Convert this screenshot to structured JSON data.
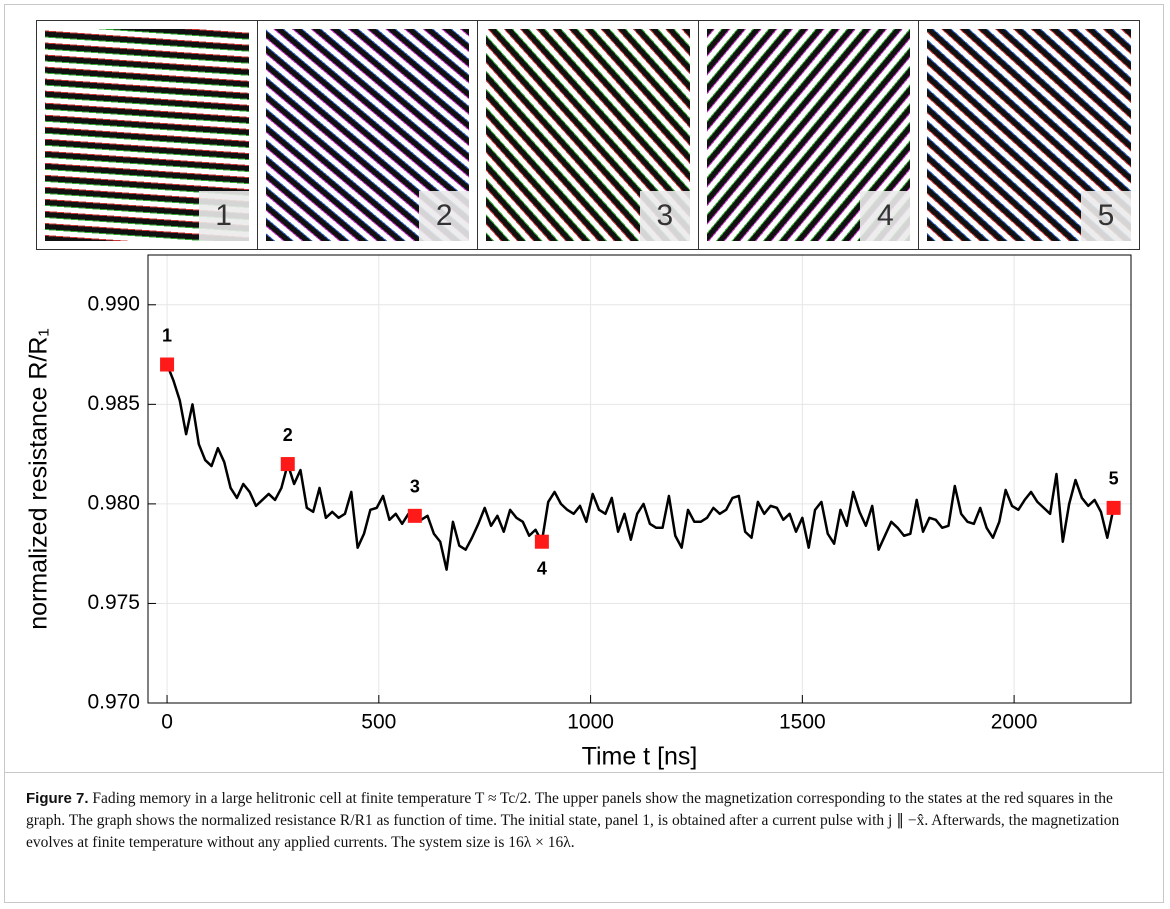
{
  "panels": [
    "1",
    "2",
    "3",
    "4",
    "5"
  ],
  "chart_data": {
    "type": "line",
    "xlabel": "Time t [ns]",
    "ylabel": "normalized resistance R/R₁",
    "xlim": [
      -45,
      2276
    ],
    "ylim": [
      0.97,
      0.9925
    ],
    "xticks": [
      0,
      500,
      1000,
      1500,
      2000
    ],
    "yticks": [
      {
        "value": 0.97,
        "label": "0.970"
      },
      {
        "value": 0.975,
        "label": "0.975"
      },
      {
        "value": 0.98,
        "label": "0.980"
      },
      {
        "value": 0.985,
        "label": "0.985"
      },
      {
        "value": 0.99,
        "label": "0.990"
      }
    ],
    "grid": true,
    "series": [
      {
        "color": "#000000",
        "x": [
          0,
          15,
          30,
          45,
          60,
          75,
          90,
          105,
          120,
          135,
          150,
          165,
          180,
          195,
          210,
          225,
          240,
          255,
          270,
          285,
          300,
          315,
          330,
          345,
          360,
          375,
          390,
          405,
          420,
          435,
          450,
          465,
          480,
          495,
          510,
          525,
          540,
          555,
          570,
          585,
          600,
          615,
          630,
          645,
          660,
          675,
          690,
          705,
          720,
          735,
          750,
          765,
          780,
          795,
          810,
          825,
          840,
          855,
          870,
          885,
          900,
          915,
          930,
          945,
          960,
          975,
          990,
          1005,
          1020,
          1035,
          1050,
          1065,
          1080,
          1095,
          1110,
          1125,
          1140,
          1155,
          1170,
          1185,
          1200,
          1215,
          1230,
          1245,
          1260,
          1275,
          1290,
          1305,
          1320,
          1335,
          1350,
          1365,
          1380,
          1395,
          1410,
          1425,
          1440,
          1455,
          1470,
          1485,
          1500,
          1515,
          1530,
          1545,
          1560,
          1575,
          1590,
          1605,
          1620,
          1635,
          1650,
          1665,
          1680,
          1695,
          1710,
          1725,
          1740,
          1755,
          1770,
          1785,
          1800,
          1815,
          1830,
          1845,
          1860,
          1875,
          1890,
          1905,
          1920,
          1935,
          1950,
          1965,
          1980,
          1995,
          2010,
          2025,
          2040,
          2055,
          2070,
          2085,
          2100,
          2115,
          2130,
          2145,
          2160,
          2175,
          2190,
          2205,
          2220,
          2235
        ],
        "values": [
          0.987,
          0.9862,
          0.9852,
          0.9835,
          0.985,
          0.983,
          0.9822,
          0.9819,
          0.9828,
          0.9821,
          0.9808,
          0.9803,
          0.981,
          0.9806,
          0.9799,
          0.9802,
          0.9805,
          0.9802,
          0.9808,
          0.982,
          0.981,
          0.9817,
          0.9798,
          0.9796,
          0.9808,
          0.9793,
          0.9796,
          0.9793,
          0.9795,
          0.9806,
          0.9778,
          0.9785,
          0.9797,
          0.9798,
          0.9804,
          0.9792,
          0.9795,
          0.979,
          0.9795,
          0.9794,
          0.9792,
          0.9794,
          0.9785,
          0.9781,
          0.9767,
          0.9791,
          0.9779,
          0.9777,
          0.9783,
          0.979,
          0.9798,
          0.9789,
          0.9794,
          0.9786,
          0.9797,
          0.9793,
          0.9791,
          0.9784,
          0.9787,
          0.9781,
          0.9801,
          0.9806,
          0.98,
          0.9797,
          0.9795,
          0.9799,
          0.9791,
          0.9805,
          0.9797,
          0.9795,
          0.9803,
          0.9786,
          0.9795,
          0.9782,
          0.9795,
          0.98,
          0.979,
          0.9788,
          0.9788,
          0.9804,
          0.9784,
          0.9778,
          0.9797,
          0.9791,
          0.9791,
          0.9793,
          0.9798,
          0.9795,
          0.9797,
          0.9803,
          0.9804,
          0.9786,
          0.9783,
          0.9801,
          0.9795,
          0.9799,
          0.9798,
          0.9792,
          0.9795,
          0.9786,
          0.9793,
          0.9778,
          0.9797,
          0.9801,
          0.9785,
          0.978,
          0.9797,
          0.9789,
          0.9806,
          0.9796,
          0.9789,
          0.9799,
          0.9777,
          0.9784,
          0.9791,
          0.9788,
          0.9784,
          0.9785,
          0.9802,
          0.9786,
          0.9793,
          0.9792,
          0.9788,
          0.9789,
          0.9809,
          0.9795,
          0.9791,
          0.979,
          0.9798,
          0.9788,
          0.9783,
          0.9791,
          0.9807,
          0.9799,
          0.9797,
          0.9802,
          0.9806,
          0.9801,
          0.9798,
          0.9795,
          0.9815,
          0.9781,
          0.98,
          0.9812,
          0.9803,
          0.9799,
          0.9802,
          0.9796,
          0.9783,
          0.9798
        ]
      },
      {
        "color": "#ff1a1a",
        "marker": "square",
        "x": [
          0,
          285,
          585,
          885,
          2235
        ],
        "values": [
          0.987,
          0.982,
          0.9794,
          0.9781,
          0.9798
        ],
        "labels": [
          "1",
          "2",
          "3",
          "4",
          "5"
        ]
      }
    ]
  },
  "caption": {
    "label": "Figure 7.",
    "text": "Fading memory in a large helitronic cell at finite temperature T ≈ Tc/2. The upper panels show the magnetization corresponding to the states at the red squares in the graph. The graph shows the normalized resistance R/R1 as function of time. The initial state, panel 1, is obtained after a current pulse with j ∥ −x̂. Afterwards, the magnetization evolves at finite temperature without any applied currents. The system size is 16λ × 16λ."
  }
}
